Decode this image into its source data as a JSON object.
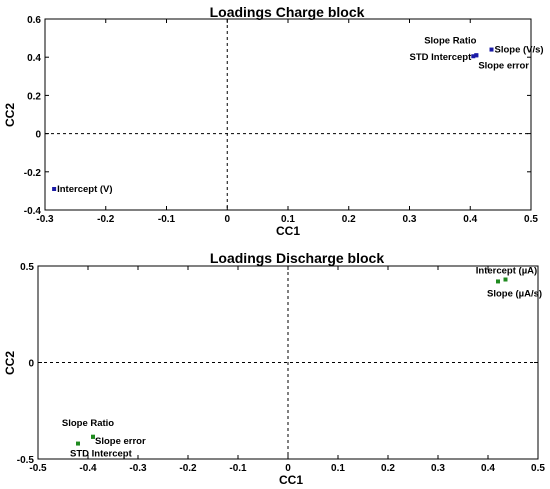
{
  "chart_data": [
    {
      "type": "scatter",
      "title": "Loadings Charge block",
      "xlabel": "CC1",
      "ylabel": "CC2",
      "xlim": [
        -0.3,
        0.5
      ],
      "ylim": [
        -0.4,
        0.6
      ],
      "xticks": [
        "-0.3",
        "-0.2",
        "-0.1",
        "0",
        "0.1",
        "0.2",
        "0.3",
        "0.4",
        "0.5"
      ],
      "yticks": [
        "-0.4",
        "-0.2",
        "0",
        "0.2",
        "0.4",
        "0.6"
      ],
      "grid": false,
      "marker_color": "#1a1aa6",
      "points": [
        {
          "label": "Slope Ratio",
          "x": 0.41,
          "y": 0.41
        },
        {
          "label": "Slope (V/s)",
          "x": 0.435,
          "y": 0.44
        },
        {
          "label": "STD Intercept",
          "x": 0.405,
          "y": 0.405
        },
        {
          "label": "Slope error",
          "x": 0.41,
          "y": 0.41
        },
        {
          "label": "Intercept (V)",
          "x": -0.285,
          "y": -0.29
        }
      ]
    },
    {
      "type": "scatter",
      "title": "Loadings Discharge block",
      "xlabel": "CC1",
      "ylabel": "CC2",
      "xlim": [
        -0.5,
        0.5
      ],
      "ylim": [
        -0.5,
        0.5
      ],
      "xticks": [
        "-0.5",
        "-0.4",
        "-0.3",
        "-0.2",
        "-0.1",
        "0",
        "0.1",
        "0.2",
        "0.3",
        "0.4",
        "0.5"
      ],
      "yticks": [
        "-0.5",
        "0",
        "0.5"
      ],
      "grid": false,
      "marker_color": "#1f8a1f",
      "points": [
        {
          "label": "Intercept (µA)",
          "x": 0.435,
          "y": 0.43
        },
        {
          "label": "Slope (µA/s)",
          "x": 0.42,
          "y": 0.42
        },
        {
          "label": "Slope Ratio",
          "x": -0.39,
          "y": -0.385
        },
        {
          "label": "Slope error",
          "x": -0.39,
          "y": -0.385
        },
        {
          "label": "STD Intercept",
          "x": -0.42,
          "y": -0.42
        }
      ]
    }
  ]
}
